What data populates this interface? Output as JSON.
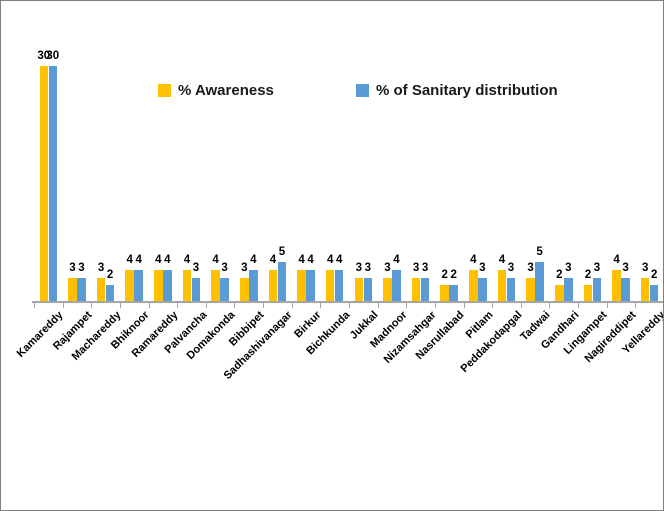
{
  "chart_data": {
    "type": "bar",
    "title": "",
    "xlabel": "",
    "ylabel": "",
    "ylim": [
      0,
      30
    ],
    "grid": false,
    "legend_position": "top-center",
    "data_labels": true,
    "categories": [
      "Kamareddy",
      "Rajampet",
      "Machareddy",
      "Bhiknoor",
      "Ramareddy",
      "Palvancha",
      "Domakonda",
      "Bibbipet",
      "Sadhashivanagar",
      "Birkur",
      "Bichkunda",
      "Jukkal",
      "Madnoor",
      "Nizamsahgar",
      "Nasrullabad",
      "Pitlam",
      "Peddakodapgal",
      "Tadwai",
      "Gandhari",
      "Lingampet",
      "Nagireddipet",
      "Yellareddy"
    ],
    "series": [
      {
        "name": "% Awareness",
        "color": "#FFC000",
        "values": [
          30,
          3,
          3,
          4,
          4,
          4,
          4,
          3,
          4,
          4,
          4,
          3,
          3,
          3,
          2,
          4,
          4,
          3,
          2,
          2,
          4,
          3
        ]
      },
      {
        "name": "% of Sanitary distribution",
        "color": "#5B9BD5",
        "values": [
          30,
          3,
          2,
          4,
          4,
          3,
          3,
          4,
          5,
          4,
          4,
          3,
          4,
          3,
          2,
          3,
          3,
          5,
          3,
          3,
          3,
          2
        ]
      }
    ]
  },
  "colors": {
    "axis": "#A6A6A6",
    "border": "#808080",
    "background": "#FFFFFF",
    "label_text": "#000000"
  }
}
